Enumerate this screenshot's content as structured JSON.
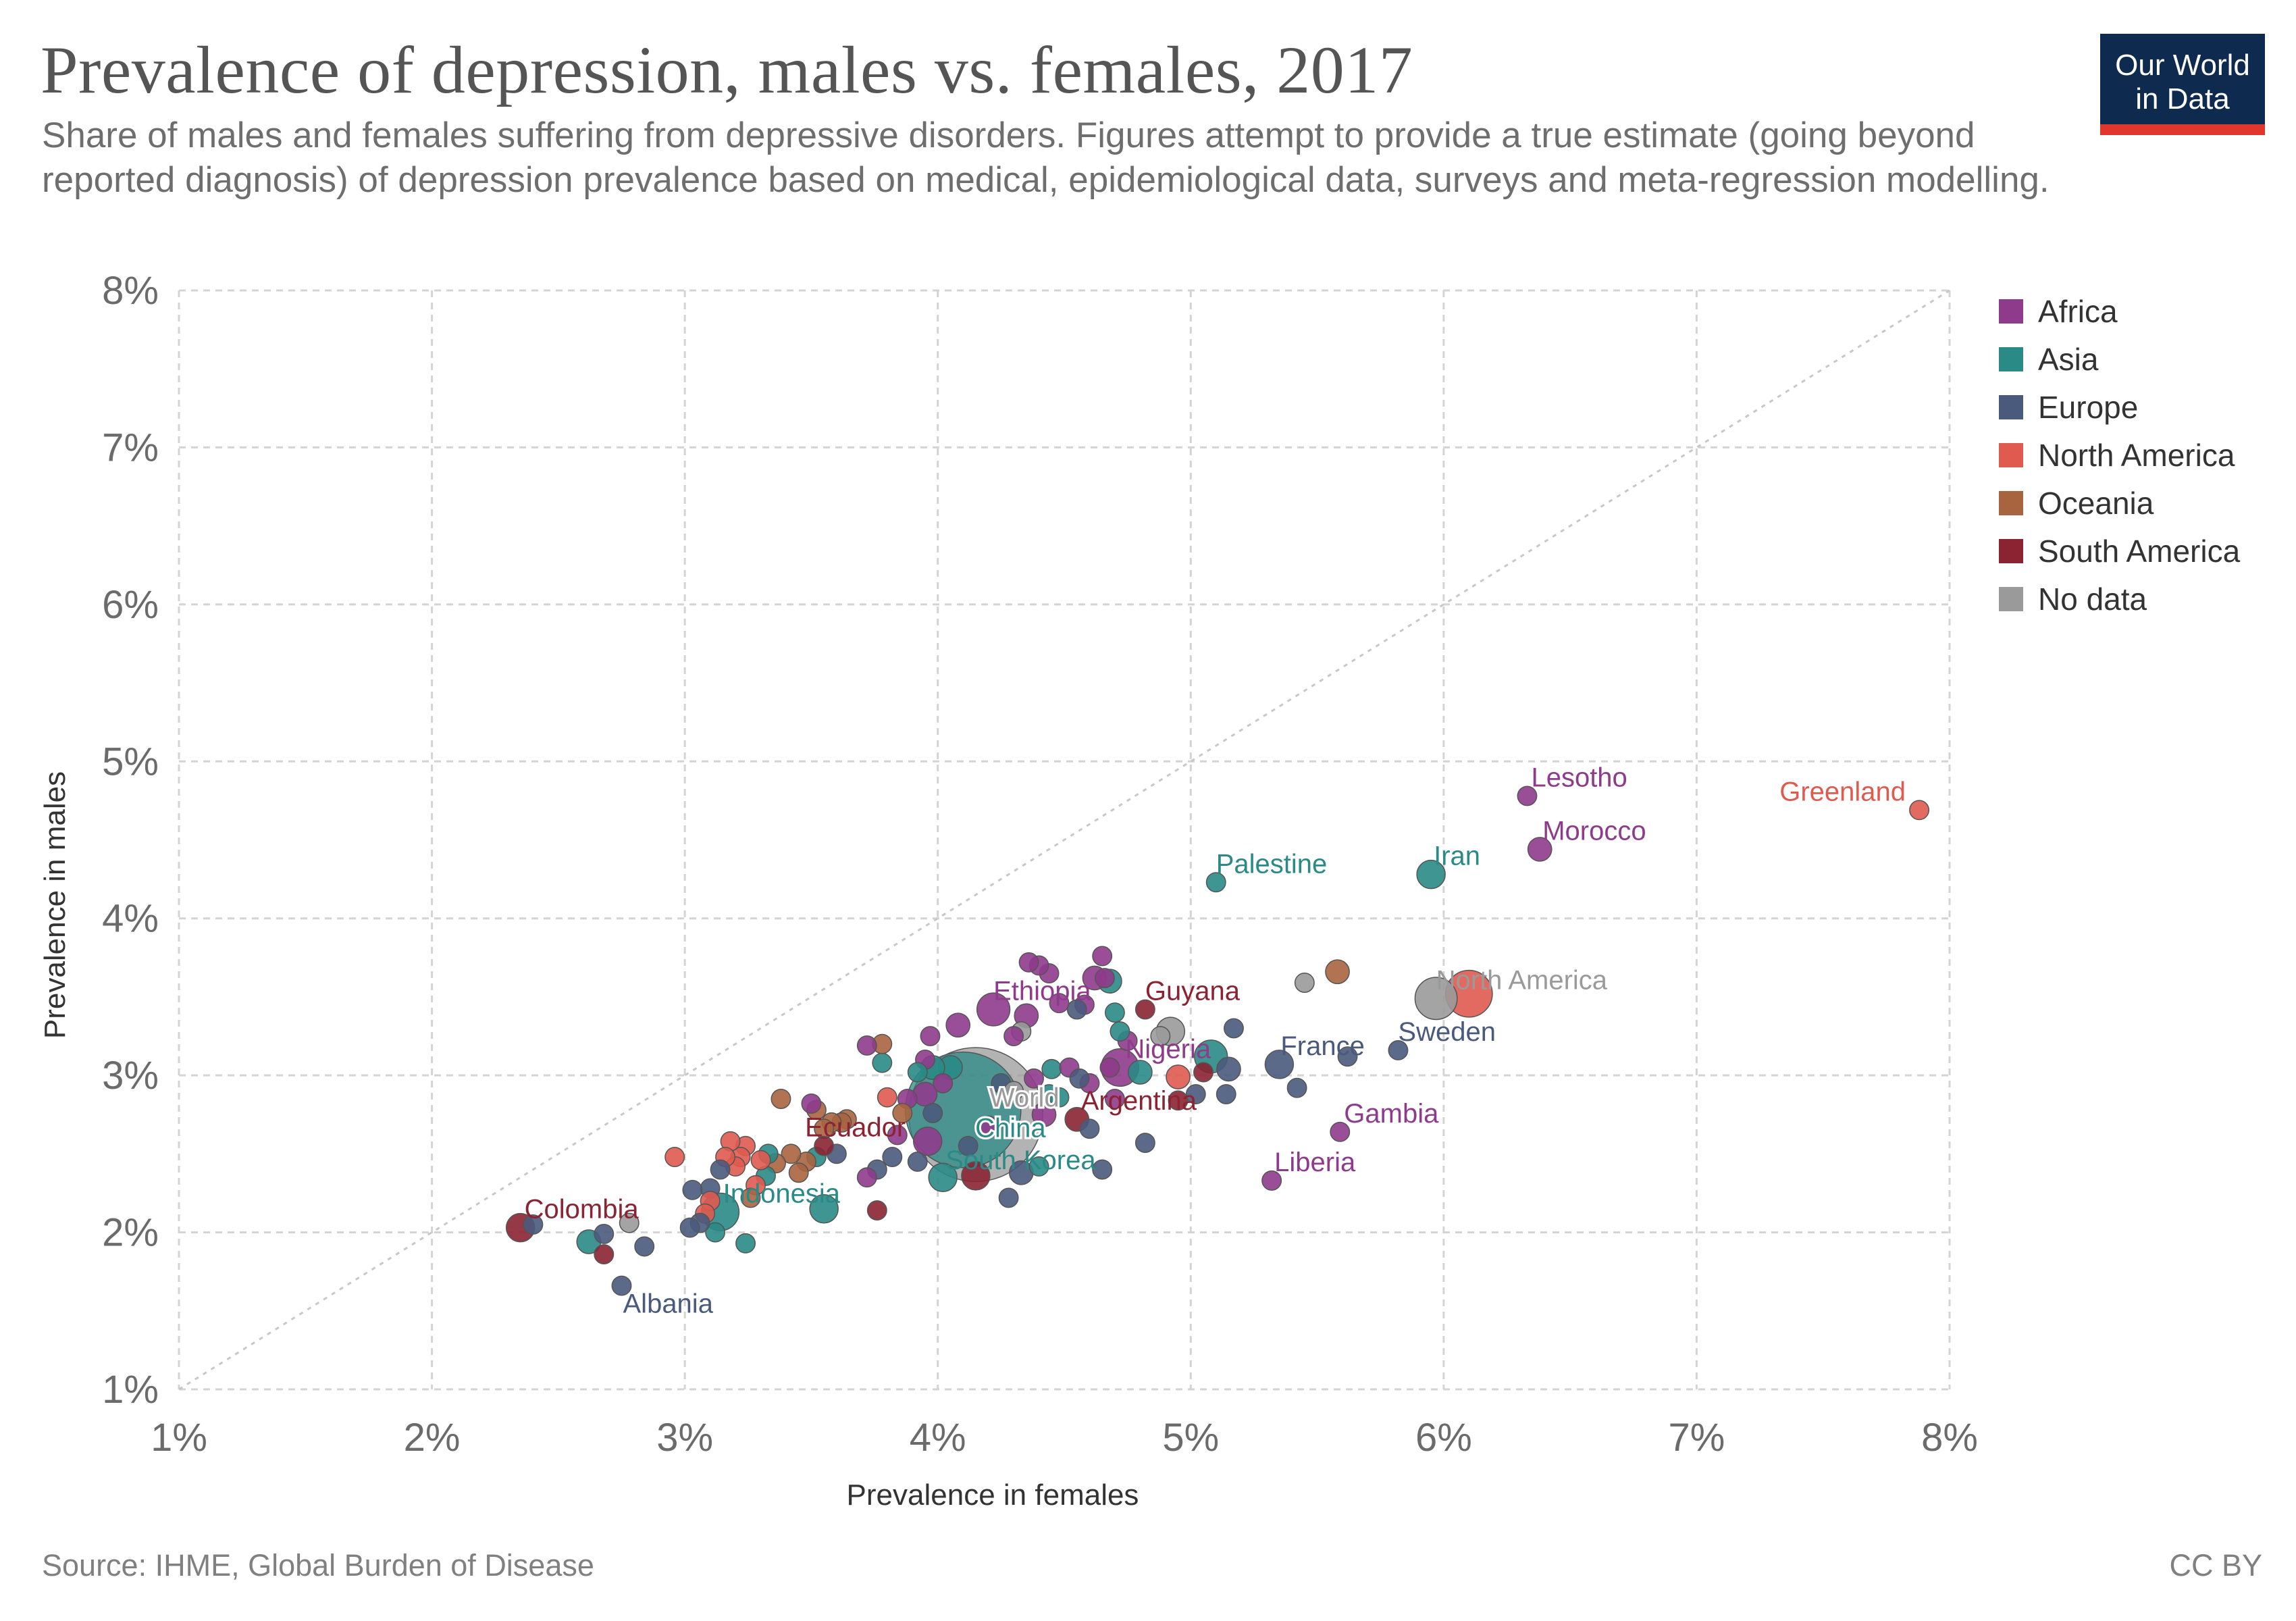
{
  "title": "Prevalence of depression, males vs. females, 2017",
  "subtitle": "Share of males and females suffering from depressive disorders. Figures attempt to provide a true estimate (going beyond reported diagnosis) of depression prevalence based on medical, epidemiological data, surveys and meta-regression modelling.",
  "logo": {
    "line1": "Our World",
    "line2": "in Data",
    "icon": "owid-logo"
  },
  "source": "Source: IHME, Global Burden of Disease",
  "license": "CC BY",
  "colors": {
    "Africa": "#8f3b8c",
    "Asia": "#2a8a86",
    "Europe": "#4a5a7d",
    "North America": "#e05a4f",
    "Oceania": "#a8643f",
    "South America": "#8b2332",
    "No data": "#9a9a9a"
  },
  "chart_data": {
    "type": "scatter",
    "title": "Prevalence of depression, males vs. females, 2017",
    "xlabel": "Prevalence in females",
    "ylabel": "Prevalence in males",
    "xlim": [
      1,
      8
    ],
    "ylim": [
      1,
      8
    ],
    "x_ticks": [
      "1%",
      "2%",
      "3%",
      "4%",
      "5%",
      "6%",
      "7%",
      "8%"
    ],
    "y_ticks": [
      "1%",
      "2%",
      "3%",
      "4%",
      "5%",
      "6%",
      "7%",
      "8%"
    ],
    "grid": true,
    "reference_line": "y = x",
    "legend_position": "right",
    "legend": [
      "Africa",
      "Asia",
      "Europe",
      "North America",
      "Oceania",
      "South America",
      "No data"
    ],
    "labeled_points": [
      {
        "name": "Lesotho",
        "x": 6.33,
        "y": 4.78,
        "region": "Africa",
        "size": 3
      },
      {
        "name": "Greenland",
        "x": 7.88,
        "y": 4.69,
        "region": "North America",
        "size": 3
      },
      {
        "name": "Morocco",
        "x": 6.38,
        "y": 4.44,
        "region": "Africa",
        "size": 4
      },
      {
        "name": "Iran",
        "x": 5.95,
        "y": 4.28,
        "region": "Asia",
        "size": 5
      },
      {
        "name": "Palestine",
        "x": 5.1,
        "y": 4.23,
        "region": "Asia",
        "size": 3
      },
      {
        "name": "North America",
        "x": 5.97,
        "y": 3.49,
        "region": "No data",
        "size": 8
      },
      {
        "name": "Guyana",
        "x": 4.82,
        "y": 3.42,
        "region": "South America",
        "size": 3
      },
      {
        "name": "Ethiopia",
        "x": 4.22,
        "y": 3.42,
        "region": "Africa",
        "size": 6
      },
      {
        "name": "Sweden",
        "x": 5.82,
        "y": 3.16,
        "region": "Europe",
        "size": 3
      },
      {
        "name": "France",
        "x": 5.35,
        "y": 3.07,
        "region": "Europe",
        "size": 5
      },
      {
        "name": "Nigeria",
        "x": 4.72,
        "y": 3.05,
        "region": "Africa",
        "size": 7
      },
      {
        "name": "World",
        "x": 4.15,
        "y": 2.75,
        "region": "No data",
        "size": 28
      },
      {
        "name": "China",
        "x": 4.1,
        "y": 2.78,
        "region": "Asia",
        "size": 24
      },
      {
        "name": "Argentina",
        "x": 4.55,
        "y": 2.72,
        "region": "South America",
        "size": 4
      },
      {
        "name": "Gambia",
        "x": 5.59,
        "y": 2.64,
        "region": "Africa",
        "size": 3
      },
      {
        "name": "Ecuador",
        "x": 3.55,
        "y": 2.55,
        "region": "South America",
        "size": 3
      },
      {
        "name": "South Korea",
        "x": 4.02,
        "y": 2.35,
        "region": "Asia",
        "size": 5
      },
      {
        "name": "Liberia",
        "x": 5.32,
        "y": 2.33,
        "region": "Africa",
        "size": 3
      },
      {
        "name": "Indonesia",
        "x": 3.14,
        "y": 2.13,
        "region": "Asia",
        "size": 7
      },
      {
        "name": "Colombia",
        "x": 2.35,
        "y": 2.03,
        "region": "South America",
        "size": 5
      },
      {
        "name": "Albania",
        "x": 2.75,
        "y": 1.66,
        "region": "Europe",
        "size": 3
      }
    ],
    "points": [
      {
        "x": 6.1,
        "y": 3.52,
        "region": "North America",
        "size": 9
      },
      {
        "x": 5.58,
        "y": 3.66,
        "region": "Oceania",
        "size": 4
      },
      {
        "x": 5.45,
        "y": 3.59,
        "region": "No data",
        "size": 3
      },
      {
        "x": 5.62,
        "y": 3.12,
        "region": "Europe",
        "size": 3
      },
      {
        "x": 5.42,
        "y": 2.92,
        "region": "Europe",
        "size": 3
      },
      {
        "x": 5.08,
        "y": 3.12,
        "region": "Asia",
        "size": 6
      },
      {
        "x": 5.15,
        "y": 3.04,
        "region": "Europe",
        "size": 4
      },
      {
        "x": 5.17,
        "y": 3.3,
        "region": "Europe",
        "size": 3
      },
      {
        "x": 5.14,
        "y": 2.88,
        "region": "Europe",
        "size": 3
      },
      {
        "x": 4.92,
        "y": 3.28,
        "region": "No data",
        "size": 5
      },
      {
        "x": 4.95,
        "y": 2.99,
        "region": "North America",
        "size": 4
      },
      {
        "x": 4.88,
        "y": 3.25,
        "region": "No data",
        "size": 3
      },
      {
        "x": 4.8,
        "y": 3.02,
        "region": "Asia",
        "size": 4
      },
      {
        "x": 4.82,
        "y": 2.57,
        "region": "Europe",
        "size": 3
      },
      {
        "x": 5.02,
        "y": 2.88,
        "region": "Europe",
        "size": 3
      },
      {
        "x": 4.95,
        "y": 2.84,
        "region": "South America",
        "size": 3
      },
      {
        "x": 5.05,
        "y": 3.02,
        "region": "South America",
        "size": 3
      },
      {
        "x": 4.75,
        "y": 3.22,
        "region": "Africa",
        "size": 3
      },
      {
        "x": 4.7,
        "y": 3.4,
        "region": "Asia",
        "size": 3
      },
      {
        "x": 4.68,
        "y": 3.6,
        "region": "Asia",
        "size": 4
      },
      {
        "x": 4.65,
        "y": 3.76,
        "region": "Africa",
        "size": 3
      },
      {
        "x": 4.62,
        "y": 3.62,
        "region": "Africa",
        "size": 4
      },
      {
        "x": 4.66,
        "y": 3.62,
        "region": "Africa",
        "size": 3
      },
      {
        "x": 4.58,
        "y": 3.45,
        "region": "Africa",
        "size": 3
      },
      {
        "x": 4.55,
        "y": 3.42,
        "region": "Europe",
        "size": 3
      },
      {
        "x": 4.48,
        "y": 3.46,
        "region": "Africa",
        "size": 3
      },
      {
        "x": 4.44,
        "y": 3.65,
        "region": "Africa",
        "size": 3
      },
      {
        "x": 4.4,
        "y": 3.7,
        "region": "Africa",
        "size": 3
      },
      {
        "x": 4.36,
        "y": 3.72,
        "region": "Africa",
        "size": 3
      },
      {
        "x": 4.35,
        "y": 3.38,
        "region": "Africa",
        "size": 4
      },
      {
        "x": 4.33,
        "y": 3.28,
        "region": "No data",
        "size": 3
      },
      {
        "x": 4.3,
        "y": 3.25,
        "region": "Africa",
        "size": 3
      },
      {
        "x": 4.45,
        "y": 3.04,
        "region": "Asia",
        "size": 3
      },
      {
        "x": 4.44,
        "y": 2.88,
        "region": "Asia",
        "size": 3
      },
      {
        "x": 4.52,
        "y": 3.05,
        "region": "Africa",
        "size": 3
      },
      {
        "x": 4.6,
        "y": 2.95,
        "region": "Africa",
        "size": 3
      },
      {
        "x": 4.56,
        "y": 2.98,
        "region": "Europe",
        "size": 3
      },
      {
        "x": 4.6,
        "y": 2.66,
        "region": "Europe",
        "size": 3
      },
      {
        "x": 4.65,
        "y": 2.4,
        "region": "Europe",
        "size": 3
      },
      {
        "x": 4.72,
        "y": 3.28,
        "region": "Asia",
        "size": 3
      },
      {
        "x": 4.7,
        "y": 2.85,
        "region": "Africa",
        "size": 3
      },
      {
        "x": 4.42,
        "y": 2.75,
        "region": "Africa",
        "size": 4
      },
      {
        "x": 4.4,
        "y": 2.42,
        "region": "Asia",
        "size": 3
      },
      {
        "x": 4.33,
        "y": 2.38,
        "region": "Europe",
        "size": 4
      },
      {
        "x": 4.28,
        "y": 2.22,
        "region": "Europe",
        "size": 3
      },
      {
        "x": 4.15,
        "y": 2.36,
        "region": "South America",
        "size": 5
      },
      {
        "x": 4.08,
        "y": 3.32,
        "region": "Africa",
        "size": 4
      },
      {
        "x": 4.05,
        "y": 3.05,
        "region": "Asia",
        "size": 4
      },
      {
        "x": 4.02,
        "y": 2.95,
        "region": "Africa",
        "size": 3
      },
      {
        "x": 3.98,
        "y": 3.05,
        "region": "Asia",
        "size": 4
      },
      {
        "x": 3.97,
        "y": 3.25,
        "region": "Africa",
        "size": 3
      },
      {
        "x": 3.95,
        "y": 3.1,
        "region": "Africa",
        "size": 3
      },
      {
        "x": 3.92,
        "y": 3.02,
        "region": "Asia",
        "size": 3
      },
      {
        "x": 3.95,
        "y": 2.88,
        "region": "Africa",
        "size": 4
      },
      {
        "x": 3.98,
        "y": 2.76,
        "region": "Europe",
        "size": 3
      },
      {
        "x": 3.96,
        "y": 2.58,
        "region": "Africa",
        "size": 5
      },
      {
        "x": 3.92,
        "y": 2.45,
        "region": "Europe",
        "size": 3
      },
      {
        "x": 3.88,
        "y": 2.85,
        "region": "Africa",
        "size": 3
      },
      {
        "x": 3.86,
        "y": 2.76,
        "region": "Oceania",
        "size": 3
      },
      {
        "x": 3.84,
        "y": 2.62,
        "region": "Africa",
        "size": 3
      },
      {
        "x": 3.8,
        "y": 2.86,
        "region": "North America",
        "size": 3
      },
      {
        "x": 3.78,
        "y": 3.08,
        "region": "Asia",
        "size": 3
      },
      {
        "x": 3.78,
        "y": 3.2,
        "region": "Oceania",
        "size": 3
      },
      {
        "x": 3.72,
        "y": 3.19,
        "region": "Africa",
        "size": 3
      },
      {
        "x": 3.76,
        "y": 2.4,
        "region": "Europe",
        "size": 3
      },
      {
        "x": 3.72,
        "y": 2.35,
        "region": "Africa",
        "size": 3
      },
      {
        "x": 3.76,
        "y": 2.14,
        "region": "South America",
        "size": 3
      },
      {
        "x": 3.82,
        "y": 2.48,
        "region": "Europe",
        "size": 3
      },
      {
        "x": 3.64,
        "y": 2.72,
        "region": "Oceania",
        "size": 3
      },
      {
        "x": 3.62,
        "y": 2.7,
        "region": "Oceania",
        "size": 3
      },
      {
        "x": 3.58,
        "y": 2.7,
        "region": "Oceania",
        "size": 3
      },
      {
        "x": 3.55,
        "y": 2.66,
        "region": "Oceania",
        "size": 3
      },
      {
        "x": 3.52,
        "y": 2.78,
        "region": "Oceania",
        "size": 3
      },
      {
        "x": 3.5,
        "y": 2.82,
        "region": "Africa",
        "size": 3
      },
      {
        "x": 3.52,
        "y": 2.48,
        "region": "Asia",
        "size": 3
      },
      {
        "x": 3.6,
        "y": 2.5,
        "region": "Europe",
        "size": 3
      },
      {
        "x": 3.55,
        "y": 2.15,
        "region": "Asia",
        "size": 5
      },
      {
        "x": 3.48,
        "y": 2.45,
        "region": "Oceania",
        "size": 3
      },
      {
        "x": 3.45,
        "y": 2.38,
        "region": "Oceania",
        "size": 3
      },
      {
        "x": 3.42,
        "y": 2.5,
        "region": "Oceania",
        "size": 3
      },
      {
        "x": 3.38,
        "y": 2.85,
        "region": "Oceania",
        "size": 3
      },
      {
        "x": 3.36,
        "y": 2.44,
        "region": "Oceania",
        "size": 3
      },
      {
        "x": 3.33,
        "y": 2.5,
        "region": "Asia",
        "size": 3
      },
      {
        "x": 3.32,
        "y": 2.36,
        "region": "Asia",
        "size": 3
      },
      {
        "x": 3.3,
        "y": 2.46,
        "region": "North America",
        "size": 3
      },
      {
        "x": 3.28,
        "y": 2.3,
        "region": "North America",
        "size": 3
      },
      {
        "x": 3.26,
        "y": 2.22,
        "region": "Oceania",
        "size": 3
      },
      {
        "x": 3.24,
        "y": 2.55,
        "region": "North America",
        "size": 3
      },
      {
        "x": 3.22,
        "y": 2.48,
        "region": "North America",
        "size": 3
      },
      {
        "x": 3.2,
        "y": 2.42,
        "region": "North America",
        "size": 3
      },
      {
        "x": 3.18,
        "y": 2.58,
        "region": "North America",
        "size": 3
      },
      {
        "x": 3.16,
        "y": 2.48,
        "region": "North America",
        "size": 3
      },
      {
        "x": 3.14,
        "y": 2.4,
        "region": "Europe",
        "size": 3
      },
      {
        "x": 3.1,
        "y": 2.28,
        "region": "Europe",
        "size": 3
      },
      {
        "x": 3.1,
        "y": 2.2,
        "region": "North America",
        "size": 3
      },
      {
        "x": 3.08,
        "y": 2.12,
        "region": "North America",
        "size": 3
      },
      {
        "x": 3.12,
        "y": 2.0,
        "region": "Asia",
        "size": 3
      },
      {
        "x": 3.06,
        "y": 2.06,
        "region": "Europe",
        "size": 3
      },
      {
        "x": 3.03,
        "y": 2.27,
        "region": "Europe",
        "size": 3
      },
      {
        "x": 3.02,
        "y": 2.03,
        "region": "Europe",
        "size": 3
      },
      {
        "x": 2.96,
        "y": 2.48,
        "region": "North America",
        "size": 3
      },
      {
        "x": 3.24,
        "y": 1.93,
        "region": "Asia",
        "size": 3
      },
      {
        "x": 2.84,
        "y": 1.91,
        "region": "Europe",
        "size": 3
      },
      {
        "x": 2.78,
        "y": 2.06,
        "region": "No data",
        "size": 3
      },
      {
        "x": 2.68,
        "y": 1.99,
        "region": "Europe",
        "size": 3
      },
      {
        "x": 2.68,
        "y": 1.86,
        "region": "South America",
        "size": 3
      },
      {
        "x": 2.62,
        "y": 1.94,
        "region": "Asia",
        "size": 4
      },
      {
        "x": 2.4,
        "y": 2.05,
        "region": "Europe",
        "size": 3
      },
      {
        "x": 4.2,
        "y": 2.68,
        "region": "Africa",
        "size": 3
      },
      {
        "x": 4.25,
        "y": 2.95,
        "region": "Europe",
        "size": 3
      },
      {
        "x": 4.3,
        "y": 2.9,
        "region": "No data",
        "size": 3
      },
      {
        "x": 4.38,
        "y": 2.98,
        "region": "Africa",
        "size": 3
      },
      {
        "x": 4.12,
        "y": 2.55,
        "region": "Europe",
        "size": 3
      },
      {
        "x": 4.48,
        "y": 2.86,
        "region": "Asia",
        "size": 3
      },
      {
        "x": 4.68,
        "y": 3.05,
        "region": "Africa",
        "size": 3
      }
    ]
  }
}
